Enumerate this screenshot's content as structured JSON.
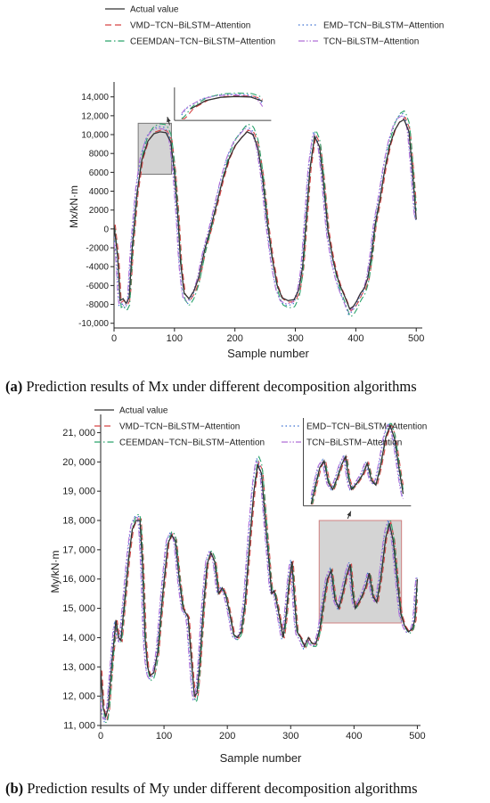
{
  "chart_data": [
    {
      "type": "line",
      "xlabel": "Sample number",
      "ylabel": "Mx/kN·m",
      "xlim": [
        0,
        510
      ],
      "ylim": [
        -10500,
        15200
      ],
      "xticks": [
        0,
        100,
        200,
        300,
        400,
        500
      ],
      "xtick_labels": [
        "0",
        "100",
        "200",
        "300",
        "400",
        "500"
      ],
      "yticks": [
        -10000,
        -8000,
        -6000,
        -4000,
        -2000,
        0,
        2000,
        4000,
        6000,
        8000,
        10000,
        12000,
        14000
      ],
      "ytick_labels": [
        "-10,000",
        "-8000",
        "-6000",
        "-4000",
        "-2000",
        "0",
        "2000",
        "4000",
        "6000",
        "8000",
        "10,000",
        "12,000",
        "14,000"
      ],
      "legend_position": "top",
      "inset": {
        "zoom_box": {
          "x": [
            40,
            95
          ],
          "y": [
            5800,
            11200
          ]
        },
        "inset_window": {
          "x": [
            100,
            260
          ],
          "y": [
            11500,
            15000
          ]
        }
      },
      "series": [
        {
          "name": "Actual value",
          "color": "#333333",
          "dash": "solid",
          "points": [
            [
              0,
              400
            ],
            [
              6,
              -3000
            ],
            [
              10,
              -7600
            ],
            [
              15,
              -7400
            ],
            [
              20,
              -7900
            ],
            [
              25,
              -7300
            ],
            [
              30,
              -2000
            ],
            [
              38,
              3800
            ],
            [
              46,
              7300
            ],
            [
              56,
              9300
            ],
            [
              66,
              10100
            ],
            [
              76,
              10300
            ],
            [
              86,
              10200
            ],
            [
              94,
              9200
            ],
            [
              100,
              6000
            ],
            [
              106,
              1000
            ],
            [
              110,
              -3500
            ],
            [
              116,
              -6800
            ],
            [
              124,
              -7400
            ],
            [
              132,
              -6600
            ],
            [
              140,
              -5200
            ],
            [
              150,
              -2200
            ],
            [
              160,
              100
            ],
            [
              170,
              2700
            ],
            [
              180,
              5300
            ],
            [
              190,
              7400
            ],
            [
              200,
              8800
            ],
            [
              210,
              9600
            ],
            [
              220,
              10300
            ],
            [
              230,
              10000
            ],
            [
              238,
              8600
            ],
            [
              246,
              5300
            ],
            [
              254,
              500
            ],
            [
              262,
              -3200
            ],
            [
              270,
              -6000
            ],
            [
              278,
              -7300
            ],
            [
              288,
              -7600
            ],
            [
              298,
              -7500
            ],
            [
              306,
              -6400
            ],
            [
              312,
              -4000
            ],
            [
              318,
              1000
            ],
            [
              324,
              6300
            ],
            [
              332,
              9800
            ],
            [
              340,
              8700
            ],
            [
              346,
              5300
            ],
            [
              354,
              -300
            ],
            [
              362,
              -3200
            ],
            [
              368,
              -4800
            ],
            [
              374,
              -6000
            ],
            [
              382,
              -7200
            ],
            [
              390,
              -8500
            ],
            [
              396,
              -8200
            ],
            [
              402,
              -7600
            ],
            [
              408,
              -6800
            ],
            [
              414,
              -6300
            ],
            [
              420,
              -5200
            ],
            [
              426,
              -2800
            ],
            [
              432,
              500
            ],
            [
              440,
              3200
            ],
            [
              448,
              6300
            ],
            [
              456,
              8800
            ],
            [
              464,
              10400
            ],
            [
              472,
              11300
            ],
            [
              480,
              11600
            ],
            [
              488,
              10300
            ],
            [
              494,
              6000
            ],
            [
              500,
              1000
            ]
          ]
        },
        {
          "name": "VMD−TCN−BiLSTM−Attention",
          "color": "#d64545",
          "dash": "dashed",
          "scale": 1.02,
          "shift": 2
        },
        {
          "name": "EMD−TCN−BiLSTM−Attention",
          "color": "#3b6fd1",
          "dash": "dotted",
          "scale": 1.06,
          "shift": -2
        },
        {
          "name": "CEEMDAN−TCN−BiLSTM−Attention",
          "color": "#2aa36b",
          "dash": "dashdot",
          "scale": 1.09,
          "shift": 1
        },
        {
          "name": "TCN−BiLSTM−Attention",
          "color": "#b06fd8",
          "dash": "dashdotdot",
          "scale": 1.04,
          "shift": -3
        }
      ]
    },
    {
      "type": "line",
      "xlabel": "Sample number",
      "ylabel": "My/kN·m",
      "xlim": [
        0,
        505
      ],
      "ylim": [
        11000,
        21500
      ],
      "xticks": [
        0,
        100,
        200,
        300,
        400,
        500
      ],
      "xtick_labels": [
        "0",
        "100",
        "200",
        "300",
        "400",
        "500"
      ],
      "yticks": [
        11000,
        12000,
        13000,
        14000,
        15000,
        16000,
        17000,
        18000,
        19000,
        20000,
        21000
      ],
      "ytick_labels": [
        "11, 000",
        "12, 000",
        "13, 000",
        "14, 000",
        "15, 000",
        "16, 000",
        "17, 000",
        "18, 000",
        "19, 000",
        "20, 000",
        "21, 000"
      ],
      "legend_position": "top",
      "inset": {
        "zoom_box": {
          "x": [
            345,
            475
          ],
          "y": [
            14500,
            18000
          ]
        },
        "inset_window": {
          "x": [
            320,
            490
          ],
          "y": [
            18500,
            21500
          ]
        }
      },
      "series": [
        {
          "name": "Actual value",
          "color": "#333333",
          "dash": "solid",
          "points": [
            [
              0,
              12900
            ],
            [
              4,
              11600
            ],
            [
              8,
              11300
            ],
            [
              12,
              11600
            ],
            [
              18,
              13200
            ],
            [
              24,
              14600
            ],
            [
              28,
              14000
            ],
            [
              32,
              13900
            ],
            [
              38,
              15300
            ],
            [
              44,
              16700
            ],
            [
              50,
              17700
            ],
            [
              56,
              18000
            ],
            [
              62,
              18000
            ],
            [
              66,
              16500
            ],
            [
              70,
              14000
            ],
            [
              74,
              13000
            ],
            [
              78,
              12700
            ],
            [
              84,
              12800
            ],
            [
              90,
              13500
            ],
            [
              98,
              15500
            ],
            [
              106,
              17200
            ],
            [
              112,
              17500
            ],
            [
              118,
              17300
            ],
            [
              124,
              16000
            ],
            [
              130,
              15000
            ],
            [
              138,
              14700
            ],
            [
              144,
              13000
            ],
            [
              148,
              12000
            ],
            [
              152,
              12100
            ],
            [
              156,
              13000
            ],
            [
              162,
              15000
            ],
            [
              168,
              16500
            ],
            [
              174,
              16900
            ],
            [
              180,
              16600
            ],
            [
              186,
              15500
            ],
            [
              192,
              15700
            ],
            [
              198,
              15400
            ],
            [
              204,
              14800
            ],
            [
              210,
              14100
            ],
            [
              216,
              14000
            ],
            [
              222,
              14200
            ],
            [
              228,
              15200
            ],
            [
              236,
              17500
            ],
            [
              242,
              19000
            ],
            [
              248,
              19900
            ],
            [
              254,
              19600
            ],
            [
              260,
              18000
            ],
            [
              266,
              16500
            ],
            [
              270,
              15500
            ],
            [
              274,
              15600
            ],
            [
              278,
              15200
            ],
            [
              284,
              14500
            ],
            [
              288,
              14000
            ],
            [
              292,
              14600
            ],
            [
              298,
              16000
            ],
            [
              302,
              16600
            ],
            [
              306,
              15300
            ],
            [
              310,
              14200
            ],
            [
              316,
              14000
            ],
            [
              322,
              13700
            ],
            [
              328,
              14000
            ],
            [
              334,
              13800
            ],
            [
              340,
              13800
            ],
            [
              346,
              14300
            ],
            [
              352,
              15200
            ],
            [
              358,
              16000
            ],
            [
              364,
              16300
            ],
            [
              370,
              15300
            ],
            [
              376,
              15000
            ],
            [
              382,
              15500
            ],
            [
              388,
              16100
            ],
            [
              394,
              16500
            ],
            [
              398,
              15500
            ],
            [
              402,
              15000
            ],
            [
              410,
              15300
            ],
            [
              418,
              15700
            ],
            [
              424,
              16200
            ],
            [
              430,
              15400
            ],
            [
              436,
              15200
            ],
            [
              442,
              16000
            ],
            [
              450,
              17400
            ],
            [
              456,
              17900
            ],
            [
              462,
              17300
            ],
            [
              468,
              16000
            ],
            [
              474,
              14800
            ],
            [
              480,
              14400
            ],
            [
              486,
              14200
            ],
            [
              492,
              14300
            ],
            [
              496,
              14600
            ],
            [
              500,
              16000
            ]
          ]
        },
        {
          "name": "VMD−TCN−BiLSTM−Attention",
          "color": "#d64545",
          "dash": "dashed",
          "scale": 1.02,
          "shift": 2
        },
        {
          "name": "EMD−TCN−BiLSTM−Attention",
          "color": "#3b6fd1",
          "dash": "dotted",
          "scale": 1.05,
          "shift": -2
        },
        {
          "name": "CEEMDAN−TCN−BiLSTM−Attention",
          "color": "#2aa36b",
          "dash": "dashdot",
          "scale": 1.07,
          "shift": 1
        },
        {
          "name": "TCN−BiLSTM−Attention",
          "color": "#b06fd8",
          "dash": "dashdotdot",
          "scale": 1.04,
          "shift": -3
        }
      ]
    }
  ],
  "captions": {
    "a": {
      "tag": "(a)",
      "text": " Prediction results of Mx under different decomposition algorithms"
    },
    "b": {
      "tag": "(b)",
      "text": " Prediction results of My under different decomposition algorithms"
    }
  }
}
